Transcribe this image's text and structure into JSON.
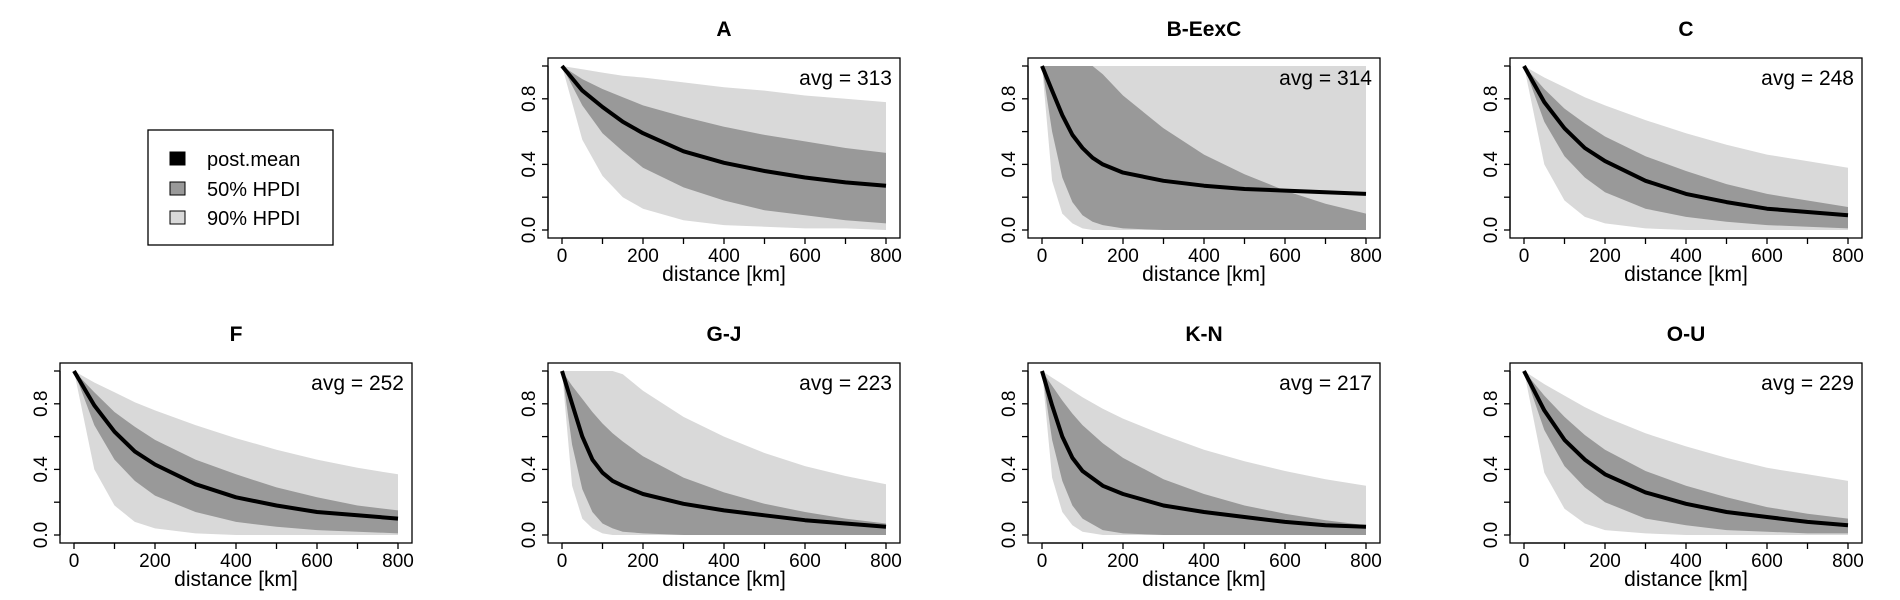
{
  "legend": {
    "entries": [
      {
        "label": "post.mean",
        "color": "#000000"
      },
      {
        "label": "50% HPDI",
        "color": "#999999"
      },
      {
        "label": "90% HPDI",
        "color": "#d9d9d9"
      }
    ]
  },
  "colors": {
    "mean": "#000000",
    "hpdi50": "#999999",
    "hpdi90": "#d9d9d9",
    "box": "#000000"
  },
  "chart_data": [
    {
      "type": "area",
      "title": "A",
      "annotation": "avg = 313",
      "xlabel": "distance [km]",
      "ylabel": "",
      "xlim": [
        0,
        800
      ],
      "ylim": [
        0,
        1
      ],
      "x_ticks": [
        "0",
        "200",
        "400",
        "600",
        "800"
      ],
      "y_ticks": [
        "0.0",
        "0.4",
        "0.8"
      ],
      "x": [
        0,
        50,
        100,
        150,
        200,
        300,
        400,
        500,
        600,
        700,
        800
      ],
      "series": [
        {
          "name": "post.mean",
          "values": [
            1.0,
            0.85,
            0.75,
            0.66,
            0.59,
            0.48,
            0.41,
            0.36,
            0.32,
            0.29,
            0.27
          ]
        },
        {
          "name": "50% HPDI",
          "lower": [
            1.0,
            0.76,
            0.59,
            0.48,
            0.38,
            0.26,
            0.18,
            0.12,
            0.09,
            0.06,
            0.04
          ],
          "upper": [
            1.0,
            0.92,
            0.86,
            0.81,
            0.76,
            0.69,
            0.63,
            0.58,
            0.54,
            0.5,
            0.47
          ]
        },
        {
          "name": "90% HPDI",
          "lower": [
            1.0,
            0.55,
            0.33,
            0.2,
            0.13,
            0.06,
            0.03,
            0.02,
            0.01,
            0.01,
            0.0
          ],
          "upper": [
            1.0,
            0.98,
            0.96,
            0.94,
            0.93,
            0.9,
            0.87,
            0.85,
            0.82,
            0.8,
            0.78
          ]
        }
      ]
    },
    {
      "type": "area",
      "title": "B-EexC",
      "annotation": "avg = 314",
      "xlabel": "distance [km]",
      "ylabel": "",
      "xlim": [
        0,
        800
      ],
      "ylim": [
        0,
        1
      ],
      "x_ticks": [
        "0",
        "200",
        "400",
        "600",
        "800"
      ],
      "y_ticks": [
        "0.0",
        "0.4",
        "0.8"
      ],
      "x": [
        0,
        25,
        50,
        75,
        100,
        125,
        150,
        200,
        300,
        400,
        500,
        600,
        700,
        800
      ],
      "series": [
        {
          "name": "post.mean",
          "values": [
            1.0,
            0.85,
            0.7,
            0.58,
            0.5,
            0.44,
            0.4,
            0.35,
            0.3,
            0.27,
            0.25,
            0.24,
            0.23,
            0.22
          ]
        },
        {
          "name": "50% HPDI",
          "lower": [
            1.0,
            0.6,
            0.32,
            0.17,
            0.09,
            0.05,
            0.03,
            0.01,
            0.0,
            0.0,
            0.0,
            0.0,
            0.0,
            0.0
          ],
          "upper": [
            1.0,
            1.0,
            1.0,
            1.0,
            1.0,
            1.0,
            0.95,
            0.82,
            0.62,
            0.46,
            0.34,
            0.24,
            0.16,
            0.1
          ]
        },
        {
          "name": "90% HPDI",
          "lower": [
            1.0,
            0.3,
            0.1,
            0.04,
            0.01,
            0.0,
            0.0,
            0.0,
            0.0,
            0.0,
            0.0,
            0.0,
            0.0,
            0.0
          ],
          "upper": [
            1.0,
            1.0,
            1.0,
            1.0,
            1.0,
            1.0,
            1.0,
            1.0,
            1.0,
            1.0,
            1.0,
            1.0,
            1.0,
            1.0
          ]
        }
      ]
    },
    {
      "type": "area",
      "title": "C",
      "annotation": "avg = 248",
      "xlabel": "distance [km]",
      "ylabel": "",
      "xlim": [
        0,
        800
      ],
      "ylim": [
        0,
        1
      ],
      "x_ticks": [
        "0",
        "200",
        "400",
        "600",
        "800"
      ],
      "y_ticks": [
        "0.0",
        "0.4",
        "0.8"
      ],
      "x": [
        0,
        50,
        100,
        150,
        200,
        300,
        400,
        500,
        600,
        700,
        800
      ],
      "series": [
        {
          "name": "post.mean",
          "values": [
            1.0,
            0.78,
            0.62,
            0.5,
            0.42,
            0.3,
            0.22,
            0.17,
            0.13,
            0.11,
            0.09
          ]
        },
        {
          "name": "50% HPDI",
          "lower": [
            1.0,
            0.66,
            0.45,
            0.32,
            0.23,
            0.13,
            0.08,
            0.05,
            0.03,
            0.02,
            0.01
          ],
          "upper": [
            1.0,
            0.86,
            0.74,
            0.65,
            0.57,
            0.45,
            0.36,
            0.28,
            0.22,
            0.18,
            0.14
          ]
        },
        {
          "name": "90% HPDI",
          "lower": [
            1.0,
            0.4,
            0.18,
            0.08,
            0.04,
            0.01,
            0.0,
            0.0,
            0.0,
            0.0,
            0.0
          ],
          "upper": [
            1.0,
            0.93,
            0.87,
            0.81,
            0.76,
            0.67,
            0.59,
            0.52,
            0.46,
            0.42,
            0.38
          ]
        }
      ]
    },
    {
      "type": "area",
      "title": "F",
      "annotation": "avg = 252",
      "xlabel": "distance [km]",
      "ylabel": "",
      "xlim": [
        0,
        800
      ],
      "ylim": [
        0,
        1
      ],
      "x_ticks": [
        "0",
        "200",
        "400",
        "600",
        "800"
      ],
      "y_ticks": [
        "0.0",
        "0.4",
        "0.8"
      ],
      "x": [
        0,
        50,
        100,
        150,
        200,
        300,
        400,
        500,
        600,
        700,
        800
      ],
      "series": [
        {
          "name": "post.mean",
          "values": [
            1.0,
            0.79,
            0.63,
            0.51,
            0.43,
            0.31,
            0.23,
            0.18,
            0.14,
            0.12,
            0.1
          ]
        },
        {
          "name": "50% HPDI",
          "lower": [
            1.0,
            0.67,
            0.46,
            0.33,
            0.24,
            0.14,
            0.08,
            0.05,
            0.03,
            0.02,
            0.01
          ],
          "upper": [
            1.0,
            0.87,
            0.75,
            0.66,
            0.58,
            0.46,
            0.37,
            0.29,
            0.23,
            0.18,
            0.15
          ]
        },
        {
          "name": "90% HPDI",
          "lower": [
            1.0,
            0.4,
            0.18,
            0.08,
            0.04,
            0.01,
            0.0,
            0.0,
            0.0,
            0.0,
            0.0
          ],
          "upper": [
            1.0,
            0.93,
            0.87,
            0.81,
            0.76,
            0.67,
            0.59,
            0.52,
            0.46,
            0.41,
            0.37
          ]
        }
      ]
    },
    {
      "type": "area",
      "title": "G-J",
      "annotation": "avg = 223",
      "xlabel": "distance [km]",
      "ylabel": "",
      "xlim": [
        0,
        800
      ],
      "ylim": [
        0,
        1
      ],
      "x_ticks": [
        "0",
        "200",
        "400",
        "600",
        "800"
      ],
      "y_ticks": [
        "0.0",
        "0.4",
        "0.8"
      ],
      "x": [
        0,
        25,
        50,
        75,
        100,
        125,
        150,
        200,
        300,
        400,
        500,
        600,
        700,
        800
      ],
      "series": [
        {
          "name": "post.mean",
          "values": [
            1.0,
            0.8,
            0.6,
            0.46,
            0.38,
            0.33,
            0.3,
            0.25,
            0.19,
            0.15,
            0.12,
            0.09,
            0.07,
            0.05
          ]
        },
        {
          "name": "50% HPDI",
          "lower": [
            1.0,
            0.55,
            0.28,
            0.14,
            0.07,
            0.04,
            0.02,
            0.01,
            0.0,
            0.0,
            0.0,
            0.0,
            0.0,
            0.0
          ],
          "upper": [
            1.0,
            0.91,
            0.83,
            0.75,
            0.68,
            0.62,
            0.57,
            0.48,
            0.35,
            0.26,
            0.19,
            0.14,
            0.1,
            0.07
          ]
        },
        {
          "name": "90% HPDI",
          "lower": [
            1.0,
            0.3,
            0.1,
            0.04,
            0.01,
            0.0,
            0.0,
            0.0,
            0.0,
            0.0,
            0.0,
            0.0,
            0.0,
            0.0
          ],
          "upper": [
            1.0,
            1.0,
            1.0,
            1.0,
            1.0,
            1.0,
            0.98,
            0.88,
            0.72,
            0.6,
            0.5,
            0.42,
            0.36,
            0.31
          ]
        }
      ]
    },
    {
      "type": "area",
      "title": "K-N",
      "annotation": "avg = 217",
      "xlabel": "distance [km]",
      "ylabel": "",
      "xlim": [
        0,
        800
      ],
      "ylim": [
        0,
        1
      ],
      "x_ticks": [
        "0",
        "200",
        "400",
        "600",
        "800"
      ],
      "y_ticks": [
        "0.0",
        "0.4",
        "0.8"
      ],
      "x": [
        0,
        25,
        50,
        75,
        100,
        150,
        200,
        300,
        400,
        500,
        600,
        700,
        800
      ],
      "series": [
        {
          "name": "post.mean",
          "values": [
            1.0,
            0.79,
            0.6,
            0.47,
            0.39,
            0.3,
            0.25,
            0.18,
            0.14,
            0.11,
            0.08,
            0.06,
            0.05
          ]
        },
        {
          "name": "50% HPDI",
          "lower": [
            1.0,
            0.58,
            0.33,
            0.18,
            0.1,
            0.03,
            0.01,
            0.0,
            0.0,
            0.0,
            0.0,
            0.0,
            0.0
          ],
          "upper": [
            1.0,
            0.91,
            0.82,
            0.74,
            0.67,
            0.56,
            0.47,
            0.34,
            0.25,
            0.18,
            0.13,
            0.09,
            0.06
          ]
        },
        {
          "name": "90% HPDI",
          "lower": [
            1.0,
            0.35,
            0.14,
            0.06,
            0.02,
            0.0,
            0.0,
            0.0,
            0.0,
            0.0,
            0.0,
            0.0,
            0.0
          ],
          "upper": [
            1.0,
            0.96,
            0.92,
            0.88,
            0.84,
            0.77,
            0.71,
            0.61,
            0.52,
            0.45,
            0.39,
            0.34,
            0.3
          ]
        }
      ]
    },
    {
      "type": "area",
      "title": "O-U",
      "annotation": "avg = 229",
      "xlabel": "distance [km]",
      "ylabel": "",
      "xlim": [
        0,
        800
      ],
      "ylim": [
        0,
        1
      ],
      "x_ticks": [
        "0",
        "200",
        "400",
        "600",
        "800"
      ],
      "y_ticks": [
        "0.0",
        "0.4",
        "0.8"
      ],
      "x": [
        0,
        50,
        100,
        150,
        200,
        300,
        400,
        500,
        600,
        700,
        800
      ],
      "series": [
        {
          "name": "post.mean",
          "values": [
            1.0,
            0.76,
            0.58,
            0.46,
            0.37,
            0.26,
            0.19,
            0.14,
            0.11,
            0.08,
            0.06
          ]
        },
        {
          "name": "50% HPDI",
          "lower": [
            1.0,
            0.64,
            0.42,
            0.29,
            0.2,
            0.1,
            0.06,
            0.03,
            0.02,
            0.01,
            0.01
          ],
          "upper": [
            1.0,
            0.85,
            0.72,
            0.61,
            0.52,
            0.39,
            0.3,
            0.23,
            0.17,
            0.13,
            0.1
          ]
        },
        {
          "name": "90% HPDI",
          "lower": [
            1.0,
            0.38,
            0.16,
            0.07,
            0.03,
            0.01,
            0.0,
            0.0,
            0.0,
            0.0,
            0.0
          ],
          "upper": [
            1.0,
            0.92,
            0.85,
            0.78,
            0.72,
            0.62,
            0.54,
            0.47,
            0.41,
            0.37,
            0.33
          ]
        }
      ]
    }
  ]
}
